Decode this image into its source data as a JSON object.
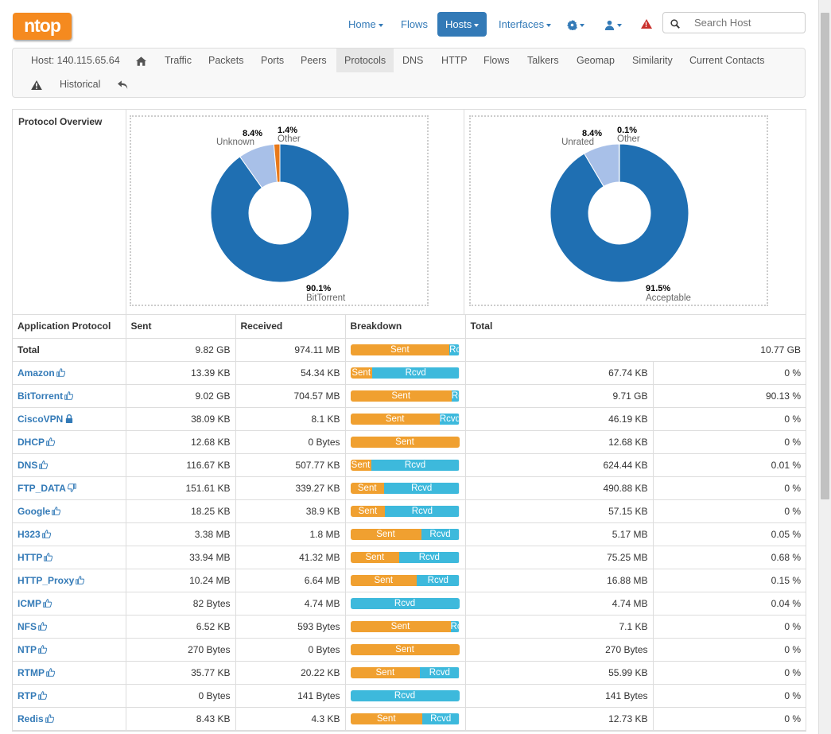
{
  "app": {
    "logo": "ntop"
  },
  "navbar": {
    "items": [
      {
        "label": "Home",
        "caret": true
      },
      {
        "label": "Flows",
        "caret": false
      },
      {
        "label": "Hosts",
        "caret": true,
        "active": true
      },
      {
        "label": "Interfaces",
        "caret": true
      }
    ],
    "search_placeholder": "Search Host"
  },
  "subnav": {
    "host": "Host: 140.115.65.64",
    "tabs": [
      "Traffic",
      "Packets",
      "Ports",
      "Peers",
      "Protocols",
      "DNS",
      "HTTP",
      "Flows",
      "Talkers",
      "Geomap",
      "Similarity",
      "Current Contacts"
    ],
    "active_tab": "Protocols",
    "historical": "Historical"
  },
  "overview": {
    "label": "Protocol Overview",
    "pie1": {
      "slices": [
        {
          "label": "BitTorrent",
          "value": 90.1,
          "color": "#1f6fb2"
        },
        {
          "label": "Unknown",
          "value": 8.4,
          "color": "#a8c0e8"
        },
        {
          "label": "Other",
          "value": 1.4,
          "color": "#e8791a"
        }
      ],
      "labels": [
        {
          "pct": "90.1%",
          "name": "BitTorrent"
        },
        {
          "pct": "8.4%",
          "name": "Unknown"
        },
        {
          "pct": "1.4%",
          "name": "Other"
        }
      ]
    },
    "pie2": {
      "slices": [
        {
          "label": "Acceptable",
          "value": 91.5,
          "color": "#1f6fb2"
        },
        {
          "label": "Unrated",
          "value": 8.4,
          "color": "#a8c0e8"
        },
        {
          "label": "Other",
          "value": 0.1,
          "color": "#e8791a"
        }
      ],
      "labels": [
        {
          "pct": "91.5%",
          "name": "Acceptable"
        },
        {
          "pct": "8.4%",
          "name": "Unrated"
        },
        {
          "pct": "0.1%",
          "name": "Other"
        }
      ]
    }
  },
  "table": {
    "headers": [
      "Application Protocol",
      "Sent",
      "Received",
      "Breakdown",
      "Total"
    ],
    "total_row": {
      "label": "Total",
      "sent": "9.82 GB",
      "received": "974.11 MB",
      "sent_pct": 91,
      "total": "10.77 GB"
    },
    "rows": [
      {
        "name": "Amazon",
        "icon": "thumbs-up-icon",
        "sent": "13.39 KB",
        "received": "54.34 KB",
        "sent_pct": 20,
        "total": "67.74 KB",
        "pct": "0 %"
      },
      {
        "name": "BitTorrent",
        "icon": "thumbs-up-icon",
        "sent": "9.02 GB",
        "received": "704.57 MB",
        "sent_pct": 93,
        "total": "9.71 GB",
        "pct": "90.13 %"
      },
      {
        "name": "CiscoVPN",
        "icon": "lock-icon",
        "sent": "38.09 KB",
        "received": "8.1 KB",
        "sent_pct": 82,
        "total": "46.19 KB",
        "pct": "0 %"
      },
      {
        "name": "DHCP",
        "icon": "thumbs-up-icon",
        "sent": "12.68 KB",
        "received": "0 Bytes",
        "sent_pct": 100,
        "total": "12.68 KB",
        "pct": "0 %"
      },
      {
        "name": "DNS",
        "icon": "thumbs-up-icon",
        "sent": "116.67 KB",
        "received": "507.77 KB",
        "sent_pct": 19,
        "total": "624.44 KB",
        "pct": "0.01 %"
      },
      {
        "name": "FTP_DATA",
        "icon": "thumbs-down-icon",
        "sent": "151.61 KB",
        "received": "339.27 KB",
        "sent_pct": 31,
        "total": "490.88 KB",
        "pct": "0 %"
      },
      {
        "name": "Google",
        "icon": "thumbs-up-icon",
        "sent": "18.25 KB",
        "received": "38.9 KB",
        "sent_pct": 32,
        "total": "57.15 KB",
        "pct": "0 %"
      },
      {
        "name": "H323",
        "icon": "thumbs-up-icon",
        "sent": "3.38 MB",
        "received": "1.8 MB",
        "sent_pct": 65,
        "total": "5.17 MB",
        "pct": "0.05 %"
      },
      {
        "name": "HTTP",
        "icon": "thumbs-up-icon",
        "sent": "33.94 MB",
        "received": "41.32 MB",
        "sent_pct": 45,
        "total": "75.25 MB",
        "pct": "0.68 %"
      },
      {
        "name": "HTTP_Proxy",
        "icon": "thumbs-up-icon",
        "sent": "10.24 MB",
        "received": "6.64 MB",
        "sent_pct": 61,
        "total": "16.88 MB",
        "pct": "0.15 %"
      },
      {
        "name": "ICMP",
        "icon": "thumbs-up-icon",
        "sent": "82 Bytes",
        "received": "4.74 MB",
        "sent_pct": 0,
        "total": "4.74 MB",
        "pct": "0.04 %"
      },
      {
        "name": "NFS",
        "icon": "thumbs-up-icon",
        "sent": "6.52 KB",
        "received": "593 Bytes",
        "sent_pct": 92,
        "total": "7.1 KB",
        "pct": "0 %"
      },
      {
        "name": "NTP",
        "icon": "thumbs-up-icon",
        "sent": "270 Bytes",
        "received": "0 Bytes",
        "sent_pct": 100,
        "total": "270 Bytes",
        "pct": "0 %"
      },
      {
        "name": "RTMP",
        "icon": "thumbs-up-icon",
        "sent": "35.77 KB",
        "received": "20.22 KB",
        "sent_pct": 64,
        "total": "55.99 KB",
        "pct": "0 %"
      },
      {
        "name": "RTP",
        "icon": "thumbs-up-icon",
        "sent": "0 Bytes",
        "received": "141 Bytes",
        "sent_pct": 0,
        "total": "141 Bytes",
        "pct": "0 %"
      },
      {
        "name": "Redis",
        "icon": "thumbs-up-icon",
        "sent": "8.43 KB",
        "received": "4.3 KB",
        "sent_pct": 66,
        "total": "12.73 KB",
        "pct": "0 %"
      }
    ],
    "bar_labels": {
      "sent": "Sent",
      "rcvd": "Rcvd"
    }
  },
  "colors": {
    "primary": "#337ab7",
    "sent": "#f0a030",
    "rcvd": "#3db9dc",
    "logo": "#f58a1f",
    "danger": "#c9302c"
  }
}
